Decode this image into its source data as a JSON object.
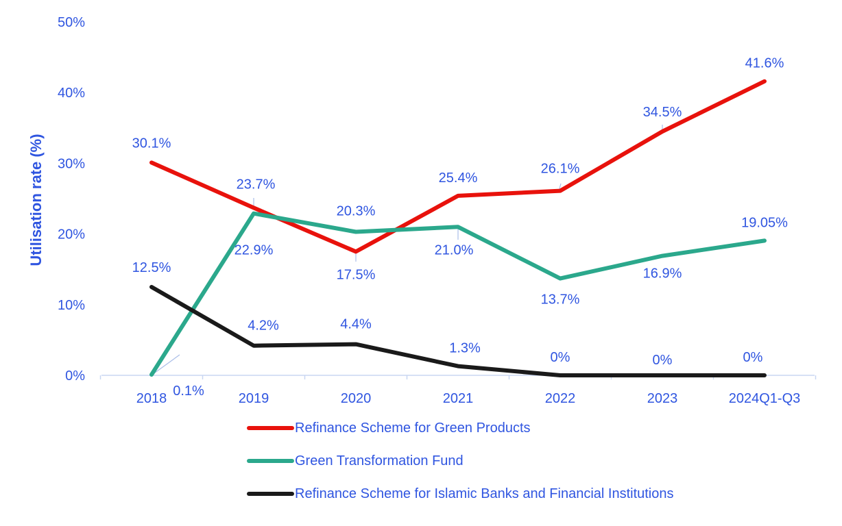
{
  "chart_data": {
    "type": "line",
    "title": "",
    "xlabel": "",
    "ylabel": "Utilisation rate (%)",
    "ylim": [
      0,
      50
    ],
    "yticks": [
      0,
      10,
      20,
      30,
      40,
      50
    ],
    "ytick_labels": [
      "0%",
      "10%",
      "20%",
      "30%",
      "40%",
      "50%"
    ],
    "categories": [
      "2018",
      "2019",
      "2020",
      "2021",
      "2022",
      "2023",
      "2024Q1-Q3"
    ],
    "grid": false,
    "legend_position": "bottom-center",
    "series": [
      {
        "name": "Refinance Scheme for Green Products",
        "color": "#e8120c",
        "values": [
          30.1,
          23.7,
          17.5,
          25.4,
          26.1,
          34.5,
          41.6
        ],
        "labels": [
          "30.1%",
          "23.7%",
          "17.5%",
          "25.4%",
          "26.1%",
          "34.5%",
          "41.6%"
        ]
      },
      {
        "name": "Green Transformation Fund",
        "color": "#2ba88c",
        "values": [
          0.1,
          22.9,
          20.3,
          21.0,
          13.7,
          16.9,
          19.05
        ],
        "labels": [
          "0.1%",
          "22.9%",
          "20.3%",
          "21.0%",
          "13.7%",
          "16.9%",
          "19.05%"
        ]
      },
      {
        "name": "Refinance Scheme for Islamic Banks and Financial Institutions",
        "color": "#1a1a1a",
        "values": [
          12.5,
          4.2,
          4.4,
          1.3,
          0,
          0,
          0
        ],
        "labels": [
          "12.5%",
          "4.2%",
          "4.4%",
          "1.3%",
          "0%",
          "0%",
          "0%"
        ]
      }
    ]
  }
}
